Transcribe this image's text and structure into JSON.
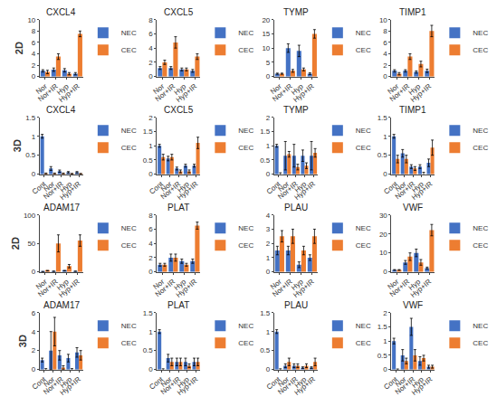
{
  "chart_data": [
    {
      "type": "bar",
      "title": "CXCL4",
      "ylabel": "2D",
      "categories": [
        "Nor",
        "Nor+IR",
        "Hyp",
        "Hyp+IR"
      ],
      "series": [
        {
          "name": "NEC",
          "color": "#4472c4",
          "values": [
            1.0,
            1.2,
            1.1,
            0.5
          ],
          "errors": [
            0.2,
            0.3,
            0.3,
            0.2
          ]
        },
        {
          "name": "CEC",
          "color": "#ed7d31",
          "values": [
            0.8,
            3.5,
            0.5,
            7.5
          ],
          "errors": [
            0.3,
            0.5,
            0.2,
            0.5
          ]
        }
      ],
      "ylim": [
        0,
        10
      ],
      "yticks": [
        0,
        2,
        4,
        6,
        8,
        10
      ],
      "grid": false,
      "legend": "upper right"
    },
    {
      "type": "bar",
      "title": "CXCL5",
      "categories": [
        "Nor",
        "Nor+IR",
        "Hyp",
        "Hyp+IR"
      ],
      "series": [
        {
          "name": "NEC",
          "color": "#4472c4",
          "values": [
            1.2,
            1.2,
            1.0,
            0.8
          ],
          "errors": [
            0.2,
            0.2,
            0.2,
            0.2
          ]
        },
        {
          "name": "CEC",
          "color": "#ed7d31",
          "values": [
            2.0,
            4.8,
            1.0,
            2.8
          ],
          "errors": [
            0.3,
            0.8,
            0.2,
            0.4
          ]
        }
      ],
      "ylim": [
        0,
        8
      ],
      "yticks": [
        0,
        2,
        4,
        6,
        8
      ],
      "grid": false,
      "legend": "upper right"
    },
    {
      "type": "bar",
      "title": "TYMP",
      "categories": [
        "Nor",
        "Nor+IR",
        "Hyp",
        "Hyp+IR"
      ],
      "series": [
        {
          "name": "NEC",
          "color": "#4472c4",
          "values": [
            1.0,
            10.0,
            9.0,
            1.0
          ],
          "errors": [
            0.2,
            1.5,
            2.0,
            0.3
          ]
        },
        {
          "name": "CEC",
          "color": "#ed7d31",
          "values": [
            1.0,
            2.0,
            2.5,
            15.0
          ],
          "errors": [
            0.2,
            0.5,
            0.5,
            1.5
          ]
        }
      ],
      "ylim": [
        0,
        20
      ],
      "yticks": [
        0,
        5,
        10,
        15,
        20
      ],
      "grid": false,
      "legend": "upper right"
    },
    {
      "type": "bar",
      "title": "TIMP1",
      "categories": [
        "Nor",
        "Nor+IR",
        "Hyp",
        "Hyp+IR"
      ],
      "series": [
        {
          "name": "NEC",
          "color": "#4472c4",
          "values": [
            1.0,
            1.0,
            0.8,
            1.0
          ],
          "errors": [
            0.2,
            0.2,
            0.2,
            0.3
          ]
        },
        {
          "name": "CEC",
          "color": "#ed7d31",
          "values": [
            0.5,
            3.5,
            2.2,
            8.0
          ],
          "errors": [
            0.2,
            0.5,
            0.5,
            1.0
          ]
        }
      ],
      "ylim": [
        0,
        10
      ],
      "yticks": [
        0,
        2,
        4,
        6,
        8,
        10
      ],
      "grid": false,
      "legend": "upper right"
    },
    {
      "type": "bar",
      "title": "CXCL4",
      "ylabel": "3D",
      "categories": [
        "Cont",
        "Nor",
        "Nor+IR",
        "Hyp",
        "Hyp+IR"
      ],
      "series": [
        {
          "name": "NEC",
          "color": "#4472c4",
          "values": [
            1.0,
            0.15,
            0.08,
            0.05,
            0.05
          ],
          "errors": [
            0.05,
            0.05,
            0.03,
            0.02,
            0.02
          ]
        },
        {
          "name": "CEC",
          "color": "#ed7d31",
          "values": [
            0.02,
            0.02,
            0.02,
            0.01,
            0.01
          ],
          "errors": [
            0.01,
            0.01,
            0.01,
            0.01,
            0.01
          ]
        }
      ],
      "ylim": [
        0,
        1.5
      ],
      "yticks": [
        0,
        0.5,
        1,
        1.5
      ],
      "grid": false,
      "legend": "upper right"
    },
    {
      "type": "bar",
      "title": "CXCL5",
      "categories": [
        "Cont",
        "Nor",
        "Nor+IR",
        "Hyp",
        "Hyp+IR"
      ],
      "series": [
        {
          "name": "NEC",
          "color": "#4472c4",
          "values": [
            1.0,
            0.55,
            0.2,
            0.3,
            0.3
          ],
          "errors": [
            0.05,
            0.08,
            0.05,
            0.05,
            0.05
          ]
        },
        {
          "name": "CEC",
          "color": "#ed7d31",
          "values": [
            0.6,
            0.6,
            0.1,
            0.1,
            1.1
          ],
          "errors": [
            0.1,
            0.1,
            0.05,
            0.05,
            0.2
          ]
        }
      ],
      "ylim": [
        0,
        2
      ],
      "yticks": [
        0,
        0.5,
        1,
        1.5,
        2
      ],
      "grid": false,
      "legend": "upper right"
    },
    {
      "type": "bar",
      "title": "TYMP",
      "categories": [
        "Cont",
        "Nor",
        "Nor+IR",
        "Hyp",
        "Hyp+IR"
      ],
      "series": [
        {
          "name": "NEC",
          "color": "#4472c4",
          "values": [
            1.0,
            0.65,
            0.65,
            0.65,
            0.65
          ],
          "errors": [
            0.05,
            0.5,
            0.4,
            0.2,
            0.5
          ]
        },
        {
          "name": "CEC",
          "color": "#ed7d31",
          "values": [
            0.0,
            0.7,
            0.25,
            0.3,
            0.75
          ],
          "errors": [
            0.05,
            0.1,
            0.1,
            0.1,
            0.15
          ]
        }
      ],
      "ylim": [
        0,
        2
      ],
      "yticks": [
        0,
        0.5,
        1,
        1.5,
        2
      ],
      "grid": false,
      "legend": "upper right"
    },
    {
      "type": "bar",
      "title": "TIMP1",
      "categories": [
        "Cont",
        "Nor",
        "Nor+IR",
        "Hyp",
        "Hyp+IR"
      ],
      "series": [
        {
          "name": "NEC",
          "color": "#4472c4",
          "values": [
            1.0,
            0.55,
            0.2,
            0.2,
            0.3
          ],
          "errors": [
            0.05,
            0.1,
            0.05,
            0.05,
            0.1
          ]
        },
        {
          "name": "CEC",
          "color": "#ed7d31",
          "values": [
            0.4,
            0.4,
            0.15,
            0.0,
            0.7
          ],
          "errors": [
            0.1,
            0.1,
            0.05,
            0.05,
            0.2
          ]
        }
      ],
      "ylim": [
        0,
        1.5
      ],
      "yticks": [
        0,
        0.5,
        1,
        1.5
      ],
      "grid": false,
      "legend": "upper right"
    },
    {
      "type": "bar",
      "title": "ADAM17",
      "ylabel": "2D",
      "categories": [
        "Nor",
        "Nor+IR",
        "Hyp",
        "Hyp+IR"
      ],
      "series": [
        {
          "name": "NEC",
          "color": "#4472c4",
          "values": [
            0.5,
            1.0,
            2.0,
            1.0
          ],
          "errors": [
            0.1,
            0.3,
            0.5,
            0.3
          ]
        },
        {
          "name": "CEC",
          "color": "#ed7d31",
          "values": [
            2.0,
            50.0,
            10.0,
            55.0
          ],
          "errors": [
            0.5,
            15.0,
            3.0,
            10.0
          ]
        }
      ],
      "ylim": [
        0,
        100
      ],
      "yticks": [
        0,
        50,
        100
      ],
      "grid": false,
      "legend": "upper right"
    },
    {
      "type": "bar",
      "title": "PLAT",
      "categories": [
        "Nor",
        "Nor+IR",
        "Hyp",
        "Hyp+IR"
      ],
      "series": [
        {
          "name": "NEC",
          "color": "#4472c4",
          "values": [
            1.0,
            2.0,
            1.5,
            1.5
          ],
          "errors": [
            0.2,
            0.5,
            0.3,
            0.3
          ]
        },
        {
          "name": "CEC",
          "color": "#ed7d31",
          "values": [
            1.0,
            2.0,
            1.0,
            6.5
          ],
          "errors": [
            0.2,
            0.5,
            0.2,
            0.5
          ]
        }
      ],
      "ylim": [
        0,
        8
      ],
      "yticks": [
        0,
        2,
        4,
        6,
        8
      ],
      "grid": false,
      "legend": "upper right"
    },
    {
      "type": "bar",
      "title": "PLAU",
      "categories": [
        "Nor",
        "Nor+IR",
        "Hyp",
        "Hyp+IR"
      ],
      "series": [
        {
          "name": "NEC",
          "color": "#4472c4",
          "values": [
            1.5,
            1.5,
            0.5,
            1.0
          ],
          "errors": [
            0.3,
            0.3,
            0.2,
            0.2
          ]
        },
        {
          "name": "CEC",
          "color": "#ed7d31",
          "values": [
            2.5,
            2.5,
            1.5,
            2.5
          ],
          "errors": [
            0.4,
            0.5,
            0.3,
            0.5
          ]
        }
      ],
      "ylim": [
        0,
        4
      ],
      "yticks": [
        0,
        1,
        2,
        3,
        4
      ],
      "grid": false,
      "legend": "upper right"
    },
    {
      "type": "bar",
      "title": "VWF",
      "categories": [
        "Nor",
        "Nor+IR",
        "Hyp",
        "Hyp+IR"
      ],
      "series": [
        {
          "name": "NEC",
          "color": "#4472c4",
          "values": [
            1.0,
            5.0,
            10.0,
            2.0
          ],
          "errors": [
            0.2,
            1.0,
            2.0,
            0.5
          ]
        },
        {
          "name": "CEC",
          "color": "#ed7d31",
          "values": [
            1.0,
            8.0,
            5.0,
            22.0
          ],
          "errors": [
            0.2,
            2.0,
            1.5,
            3.0
          ]
        }
      ],
      "ylim": [
        0,
        30
      ],
      "yticks": [
        0,
        10,
        20,
        30
      ],
      "grid": false,
      "legend": "upper right"
    },
    {
      "type": "bar",
      "title": "ADAM17",
      "ylabel": "3D",
      "categories": [
        "Cont",
        "Nor",
        "Nor+IR",
        "Hyp",
        "Hyp+IR"
      ],
      "series": [
        {
          "name": "NEC",
          "color": "#4472c4",
          "values": [
            1.0,
            2.0,
            1.5,
            1.2,
            1.8
          ],
          "errors": [
            0.2,
            2.0,
            0.5,
            0.4,
            0.5
          ]
        },
        {
          "name": "CEC",
          "color": "#ed7d31",
          "values": [
            0.0,
            4.0,
            0.2,
            0.0,
            1.5
          ],
          "errors": [
            0.1,
            1.5,
            0.2,
            0.1,
            0.5
          ]
        }
      ],
      "ylim": [
        0,
        6
      ],
      "yticks": [
        0,
        2,
        4,
        6
      ],
      "grid": false,
      "legend": "upper right"
    },
    {
      "type": "bar",
      "title": "PLAT",
      "categories": [
        "Cont",
        "Nor",
        "Nor+IR",
        "Hyp",
        "Hyp+IR"
      ],
      "series": [
        {
          "name": "NEC",
          "color": "#4472c4",
          "values": [
            1.0,
            0.3,
            0.2,
            0.2,
            0.2
          ],
          "errors": [
            0.05,
            0.1,
            0.1,
            0.1,
            0.1
          ]
        },
        {
          "name": "CEC",
          "color": "#ed7d31",
          "values": [
            0.0,
            0.2,
            0.2,
            0.1,
            0.2
          ],
          "errors": [
            0.02,
            0.1,
            0.1,
            0.05,
            0.1
          ]
        }
      ],
      "ylim": [
        0,
        1.5
      ],
      "yticks": [
        0,
        0.5,
        1,
        1.5
      ],
      "grid": false,
      "legend": "upper right"
    },
    {
      "type": "bar",
      "title": "PLAU",
      "categories": [
        "Cont",
        "Nor",
        "Nor+IR",
        "Hyp",
        "Hyp+IR"
      ],
      "series": [
        {
          "name": "NEC",
          "color": "#4472c4",
          "values": [
            1.0,
            0.1,
            0.1,
            0.05,
            0.05
          ],
          "errors": [
            0.05,
            0.05,
            0.05,
            0.02,
            0.02
          ]
        },
        {
          "name": "CEC",
          "color": "#ed7d31",
          "values": [
            0.0,
            0.2,
            0.1,
            0.1,
            0.2
          ],
          "errors": [
            0.02,
            0.1,
            0.05,
            0.05,
            0.1
          ]
        }
      ],
      "ylim": [
        0,
        1.5
      ],
      "yticks": [
        0,
        0.5,
        1,
        1.5
      ],
      "grid": false,
      "legend": "upper right"
    },
    {
      "type": "bar",
      "title": "VWF",
      "categories": [
        "Cont",
        "Nor",
        "Nor+IR",
        "Hyp",
        "Hyp+IR"
      ],
      "series": [
        {
          "name": "NEC",
          "color": "#4472c4",
          "values": [
            1.0,
            0.5,
            1.5,
            0.3,
            0.1
          ],
          "errors": [
            0.1,
            0.2,
            0.3,
            0.15,
            0.05
          ]
        },
        {
          "name": "CEC",
          "color": "#ed7d31",
          "values": [
            0.0,
            0.3,
            0.5,
            0.4,
            0.1
          ],
          "errors": [
            0.02,
            0.1,
            0.2,
            0.1,
            0.05
          ]
        }
      ],
      "ylim": [
        0,
        2
      ],
      "yticks": [
        0,
        0.5,
        1,
        1.5,
        2
      ],
      "grid": false,
      "legend": "upper right"
    }
  ]
}
